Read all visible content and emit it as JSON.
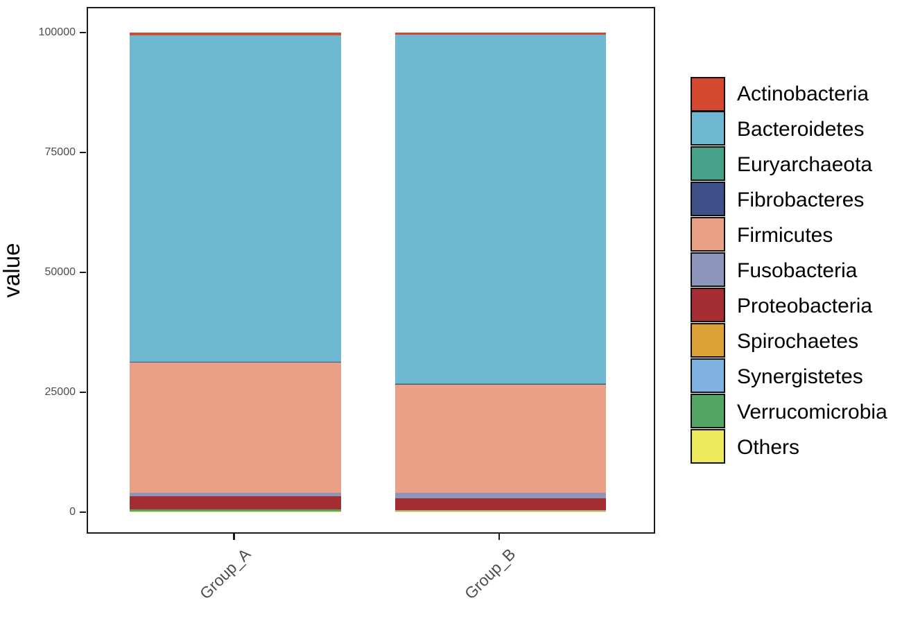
{
  "chart_data": {
    "type": "bar",
    "stacked": true,
    "title": "",
    "xlabel": "",
    "ylabel": "value",
    "ylim": [
      0,
      100000
    ],
    "y_ticks": [
      0,
      25000,
      50000,
      75000,
      100000
    ],
    "y_tick_labels": [
      "0",
      "25000",
      "50000",
      "75000",
      "100000"
    ],
    "categories": [
      "Group_A",
      "Group_B"
    ],
    "legend_position": "right",
    "grid": false,
    "series": [
      {
        "name": "Actinobacteria",
        "color": "#d4482f",
        "values": [
          650,
          570
        ]
      },
      {
        "name": "Bacteroidetes",
        "color": "#6fb8d2",
        "values": [
          68000,
          72600
        ]
      },
      {
        "name": "Euryarchaeota",
        "color": "#45a188",
        "values": [
          100,
          150
        ]
      },
      {
        "name": "Fibrobacteres",
        "color": "#3f5088",
        "values": [
          50,
          100
        ]
      },
      {
        "name": "Firmicutes",
        "color": "#e9a084",
        "values": [
          27300,
          22600
        ]
      },
      {
        "name": "Fusobacteria",
        "color": "#8d95ba",
        "values": [
          600,
          1150
        ]
      },
      {
        "name": "Proteobacteria",
        "color": "#a42c33",
        "values": [
          2800,
          2450
        ]
      },
      {
        "name": "Spirochaetes",
        "color": "#dca237",
        "values": [
          30,
          220
        ]
      },
      {
        "name": "Synergistetes",
        "color": "#7fb2e0",
        "values": [
          20,
          40
        ]
      },
      {
        "name": "Verrucomicrobia",
        "color": "#55a566",
        "values": [
          420,
          50
        ]
      },
      {
        "name": "Others",
        "color": "#ece95c",
        "values": [
          30,
          70
        ]
      }
    ]
  }
}
